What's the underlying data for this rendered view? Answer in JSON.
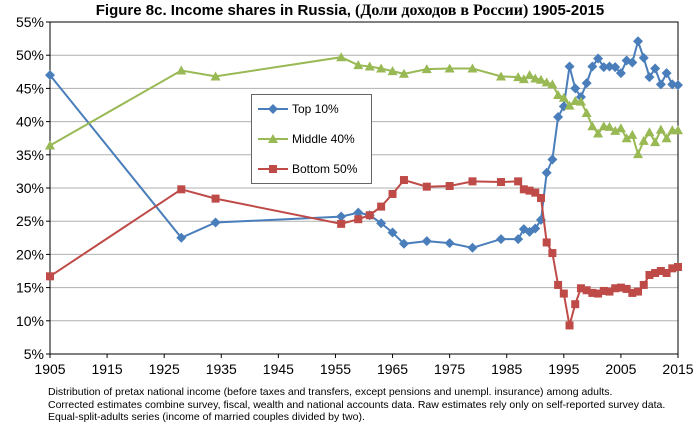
{
  "title": {
    "prefix": "Figure 8c. Income shares in Russia,",
    "russian": "(Доли доходов в России)",
    "years": "1905-2015"
  },
  "notes": [
    "Distribution of pretax national income (before taxes and transfers, except pensions and unempl. insurance) among adults.",
    "Corrected estimates combine survey, fiscal, wealth and national accounts data. Raw estimates rely only on self-reported survey data.",
    "Equal-split-adults series (income of married couples divided by two)."
  ],
  "colors": {
    "top10": "#4a7ebb",
    "middle40": "#98b954",
    "bottom50": "#be4b48",
    "grid": "#b0b0b0"
  },
  "chart_data": {
    "type": "line",
    "xlim": [
      1905,
      2015
    ],
    "ylim": [
      5,
      55
    ],
    "x_ticks": [
      "1905",
      "1915",
      "1925",
      "1935",
      "1945",
      "1955",
      "1965",
      "1975",
      "1985",
      "1995",
      "2005",
      "2015"
    ],
    "y_ticks": [
      "5%",
      "10%",
      "15%",
      "20%",
      "25%",
      "30%",
      "35%",
      "40%",
      "45%",
      "50%",
      "55%"
    ],
    "grid": "horizontal",
    "legend_position": "center-left",
    "series": [
      {
        "name": "Top 10%",
        "marker": "diamond",
        "points": [
          [
            1905,
            47.0
          ],
          [
            1928,
            22.5
          ],
          [
            1934,
            24.8
          ],
          [
            1956,
            25.7
          ],
          [
            1959,
            26.3
          ],
          [
            1961,
            25.9
          ],
          [
            1963,
            24.7
          ],
          [
            1965,
            23.3
          ],
          [
            1967,
            21.6
          ],
          [
            1971,
            22.0
          ],
          [
            1975,
            21.7
          ],
          [
            1979,
            21.0
          ],
          [
            1984,
            22.3
          ],
          [
            1987,
            22.3
          ],
          [
            1988,
            23.8
          ],
          [
            1989,
            23.4
          ],
          [
            1990,
            23.9
          ],
          [
            1991,
            25.2
          ],
          [
            1992,
            32.3
          ],
          [
            1993,
            34.3
          ],
          [
            1994,
            40.7
          ],
          [
            1995,
            42.3
          ],
          [
            1996,
            48.3
          ],
          [
            1997,
            45.0
          ],
          [
            1998,
            43.7
          ],
          [
            1999,
            45.8
          ],
          [
            2000,
            48.3
          ],
          [
            2001,
            49.5
          ],
          [
            2002,
            48.2
          ],
          [
            2003,
            48.3
          ],
          [
            2004,
            48.2
          ],
          [
            2005,
            47.3
          ],
          [
            2006,
            49.2
          ],
          [
            2007,
            48.9
          ],
          [
            2008,
            52.1
          ],
          [
            2009,
            49.6
          ],
          [
            2010,
            46.7
          ],
          [
            2011,
            48.0
          ],
          [
            2012,
            45.6
          ],
          [
            2013,
            47.3
          ],
          [
            2014,
            45.6
          ],
          [
            2015,
            45.5
          ]
        ]
      },
      {
        "name": "Middle 40%",
        "marker": "triangle",
        "points": [
          [
            1905,
            36.4
          ],
          [
            1928,
            47.7
          ],
          [
            1934,
            46.8
          ],
          [
            1956,
            49.7
          ],
          [
            1959,
            48.5
          ],
          [
            1961,
            48.3
          ],
          [
            1963,
            48.0
          ],
          [
            1965,
            47.6
          ],
          [
            1967,
            47.2
          ],
          [
            1971,
            47.9
          ],
          [
            1975,
            48.0
          ],
          [
            1979,
            48.0
          ],
          [
            1984,
            46.8
          ],
          [
            1987,
            46.7
          ],
          [
            1988,
            46.4
          ],
          [
            1989,
            47.0
          ],
          [
            1990,
            46.5
          ],
          [
            1991,
            46.3
          ],
          [
            1992,
            45.9
          ],
          [
            1993,
            45.6
          ],
          [
            1994,
            44.0
          ],
          [
            1995,
            43.6
          ],
          [
            1996,
            42.4
          ],
          [
            1997,
            43.1
          ],
          [
            1998,
            43.0
          ],
          [
            1999,
            41.3
          ],
          [
            2000,
            39.3
          ],
          [
            2001,
            38.2
          ],
          [
            2002,
            39.3
          ],
          [
            2003,
            39.2
          ],
          [
            2004,
            38.6
          ],
          [
            2005,
            39.0
          ],
          [
            2006,
            37.5
          ],
          [
            2007,
            38.0
          ],
          [
            2008,
            35.1
          ],
          [
            2009,
            37.1
          ],
          [
            2010,
            38.4
          ],
          [
            2011,
            36.9
          ],
          [
            2012,
            38.8
          ],
          [
            2013,
            37.5
          ],
          [
            2014,
            38.7
          ],
          [
            2015,
            38.7
          ]
        ]
      },
      {
        "name": "Bottom 50%",
        "marker": "square",
        "points": [
          [
            1905,
            16.7
          ],
          [
            1928,
            29.8
          ],
          [
            1934,
            28.4
          ],
          [
            1956,
            24.6
          ],
          [
            1959,
            25.3
          ],
          [
            1961,
            25.9
          ],
          [
            1963,
            27.2
          ],
          [
            1965,
            29.1
          ],
          [
            1967,
            31.2
          ],
          [
            1971,
            30.2
          ],
          [
            1975,
            30.3
          ],
          [
            1979,
            31.0
          ],
          [
            1984,
            30.9
          ],
          [
            1987,
            31.0
          ],
          [
            1988,
            29.8
          ],
          [
            1989,
            29.6
          ],
          [
            1990,
            29.3
          ],
          [
            1991,
            28.5
          ],
          [
            1992,
            21.8
          ],
          [
            1993,
            20.2
          ],
          [
            1994,
            15.4
          ],
          [
            1995,
            14.1
          ],
          [
            1996,
            9.3
          ],
          [
            1997,
            12.5
          ],
          [
            1998,
            14.9
          ],
          [
            1999,
            14.6
          ],
          [
            2000,
            14.2
          ],
          [
            2001,
            14.1
          ],
          [
            2002,
            14.5
          ],
          [
            2003,
            14.4
          ],
          [
            2004,
            14.9
          ],
          [
            2005,
            15.0
          ],
          [
            2006,
            14.8
          ],
          [
            2007,
            14.2
          ],
          [
            2008,
            14.4
          ],
          [
            2009,
            15.4
          ],
          [
            2010,
            16.9
          ],
          [
            2011,
            17.2
          ],
          [
            2012,
            17.5
          ],
          [
            2013,
            17.2
          ],
          [
            2014,
            17.9
          ],
          [
            2015,
            18.1
          ]
        ]
      }
    ]
  }
}
